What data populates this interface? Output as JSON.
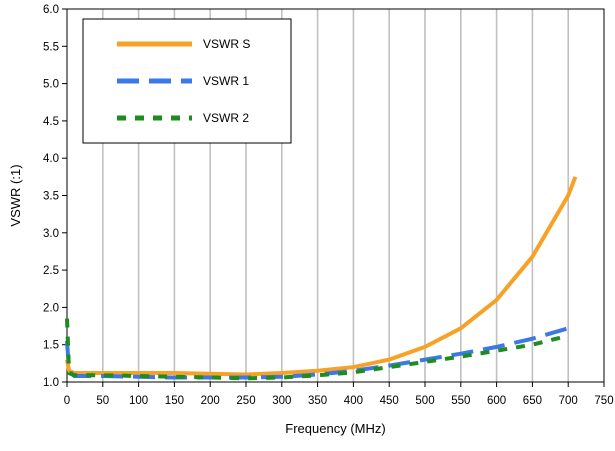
{
  "chart_data": {
    "type": "line",
    "title": "",
    "xlabel": "Frequency (MHz)",
    "ylabel": "VSWR (:1)",
    "xlim": [
      0,
      750
    ],
    "ylim": [
      1.0,
      6.0
    ],
    "x_ticks": [
      "0",
      "50",
      "100",
      "150",
      "200",
      "250",
      "300",
      "350",
      "400",
      "450",
      "500",
      "550",
      "600",
      "650",
      "700",
      "750"
    ],
    "y_ticks": [
      "1.0",
      "1.5",
      "2.0",
      "2.5",
      "3.0",
      "3.5",
      "4.0",
      "4.5",
      "5.0",
      "5.5",
      "6.0"
    ],
    "grid": "vertical",
    "legend_position": "top-left",
    "series": [
      {
        "name": "VSWR S",
        "color": "#F7A126",
        "style": "solid",
        "x": [
          0,
          3,
          10,
          25,
          50,
          100,
          150,
          200,
          250,
          300,
          350,
          400,
          450,
          500,
          550,
          600,
          650,
          700,
          710
        ],
        "y": [
          1.3,
          1.15,
          1.12,
          1.12,
          1.12,
          1.12,
          1.12,
          1.11,
          1.1,
          1.12,
          1.15,
          1.2,
          1.3,
          1.47,
          1.72,
          2.1,
          2.68,
          3.5,
          3.75
        ]
      },
      {
        "name": "VSWR 1",
        "color": "#3C78E6",
        "style": "dashed",
        "x": [
          0,
          3,
          10,
          25,
          50,
          100,
          150,
          200,
          250,
          300,
          350,
          400,
          450,
          500,
          550,
          600,
          650,
          700,
          710
        ],
        "y": [
          1.55,
          1.15,
          1.08,
          1.08,
          1.08,
          1.07,
          1.06,
          1.06,
          1.06,
          1.07,
          1.1,
          1.15,
          1.22,
          1.3,
          1.38,
          1.47,
          1.58,
          1.72,
          1.77
        ]
      },
      {
        "name": "VSWR 2",
        "color": "#1E8C1E",
        "style": "dotted",
        "x": [
          0,
          3,
          10,
          25,
          50,
          100,
          150,
          200,
          250,
          300,
          350,
          400,
          450,
          500,
          550,
          600,
          650,
          700
        ],
        "y": [
          1.85,
          1.12,
          1.09,
          1.09,
          1.09,
          1.08,
          1.07,
          1.06,
          1.05,
          1.06,
          1.09,
          1.13,
          1.2,
          1.27,
          1.34,
          1.42,
          1.5,
          1.62
        ]
      }
    ]
  }
}
